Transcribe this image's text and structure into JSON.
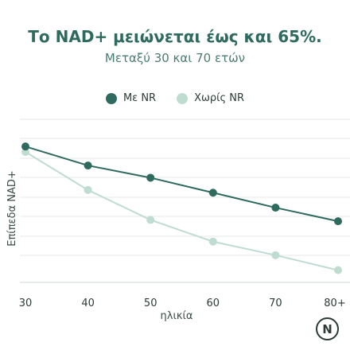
{
  "chart_data": {
    "type": "line",
    "title": "Το NAD+ μειώνεται έως και 65%.",
    "subtitle": "Μεταξύ 30 και 70 ετών",
    "xlabel": "ηλικία",
    "ylabel": "Επίπεδα NAD+",
    "categories": [
      "30",
      "40",
      "50",
      "60",
      "70",
      "80+"
    ],
    "series": [
      {
        "name": "Με NR",
        "color": "#2f6a5e",
        "values": [
          100,
          86,
          77,
          66,
          55,
          45
        ]
      },
      {
        "name": "Χωρίς NR",
        "color": "#bfdcd1",
        "values": [
          96,
          68,
          46,
          30,
          20,
          9
        ]
      }
    ],
    "ylim": [
      0,
      120
    ],
    "grid": true,
    "legend": "top-center"
  },
  "logo_letter": "N"
}
